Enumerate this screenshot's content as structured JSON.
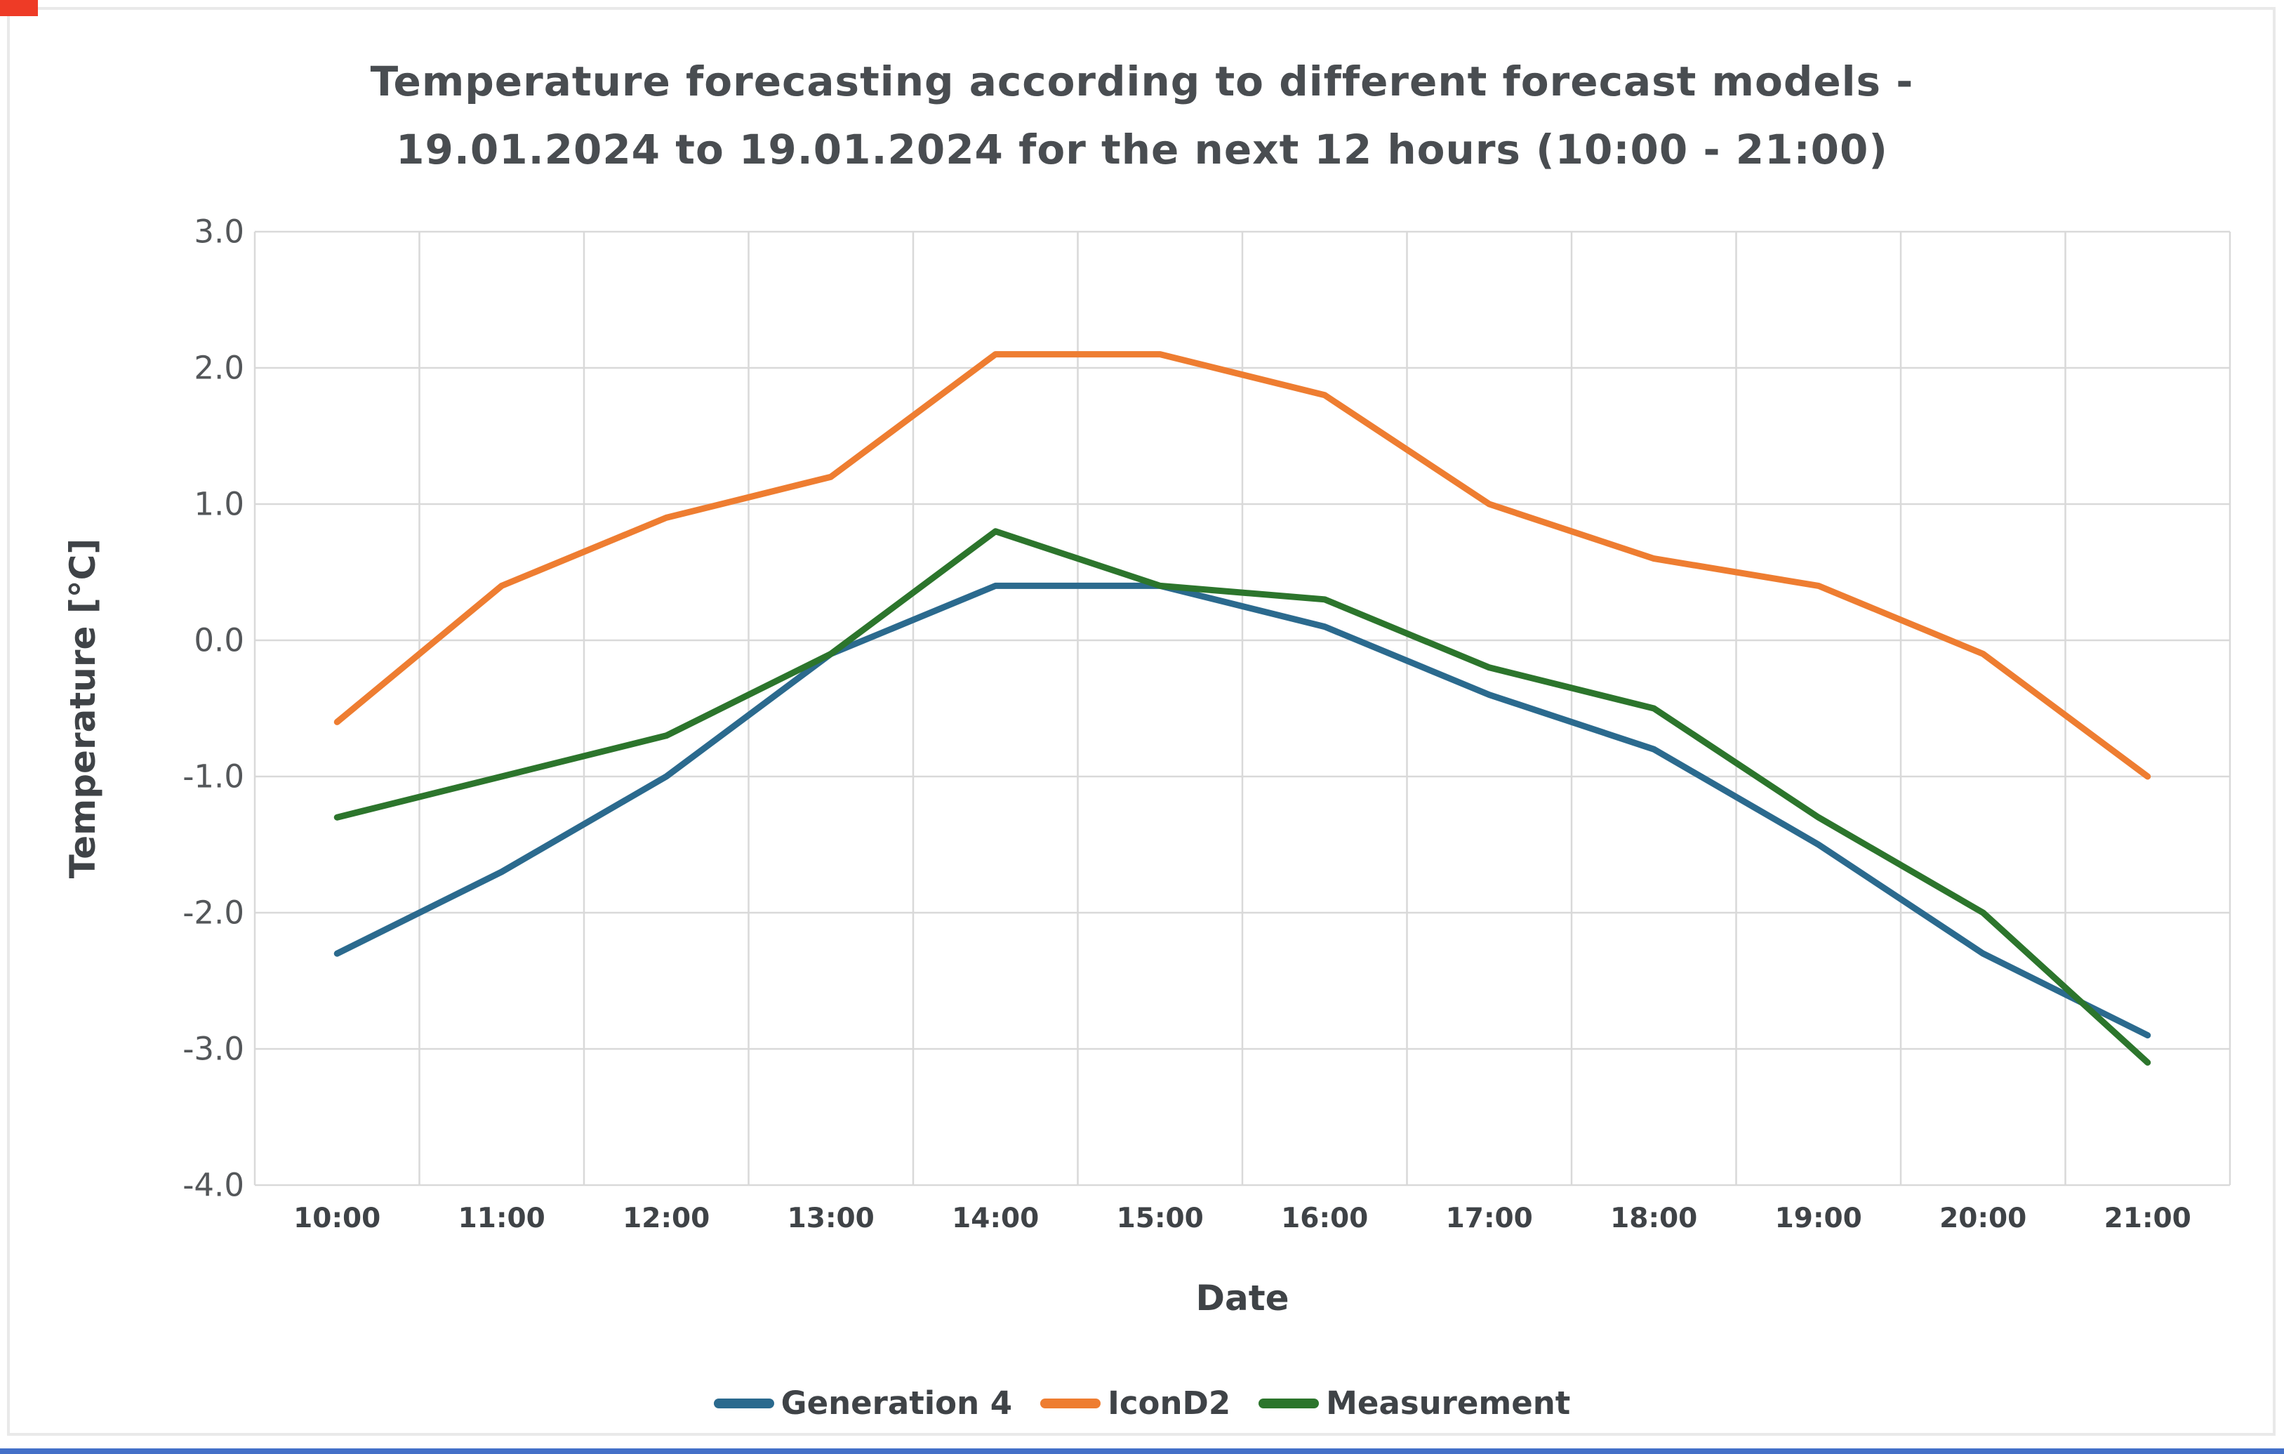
{
  "page": {
    "background_color": "#ffffff",
    "panel_border_color": "#e9e9e9",
    "corner_marker_color": "#ee3b26",
    "bottom_bar_color": "#4470c8"
  },
  "title": {
    "line1": "Temperature forecasting according to different forecast models -",
    "line2": "19.01.2024 to 19.01.2024 for the next 12 hours (10:00 - 21:00)"
  },
  "chart_data": {
    "type": "line",
    "title": "Temperature forecasting according to different forecast models - 19.01.2024 to 19.01.2024 for the next 12 hours (10:00 - 21:00)",
    "xlabel": "Date",
    "ylabel": "Temperature [°C]",
    "ylim": [
      -4.0,
      3.0
    ],
    "y_tick_step": 1.0,
    "y_tick_labels": [
      "3.0",
      "2.0",
      "1.0",
      "0.0",
      "-1.0",
      "-2.0",
      "-3.0",
      "-4.0"
    ],
    "grid": true,
    "grid_color": "#d9d9d9",
    "legend_position": "bottom",
    "categories": [
      "10:00",
      "11:00",
      "12:00",
      "13:00",
      "14:00",
      "15:00",
      "16:00",
      "17:00",
      "18:00",
      "19:00",
      "20:00",
      "21:00"
    ],
    "series": [
      {
        "name": "Generation 4",
        "color": "#2b6a8e",
        "values": [
          -2.3,
          -1.7,
          -1.0,
          -0.1,
          0.4,
          0.4,
          0.1,
          -0.4,
          -0.8,
          -1.5,
          -2.3,
          -2.9
        ]
      },
      {
        "name": "IconD2",
        "color": "#ee7d31",
        "values": [
          -0.6,
          0.4,
          0.9,
          1.2,
          2.1,
          2.1,
          1.8,
          1.0,
          0.6,
          0.4,
          -0.1,
          -1.0
        ]
      },
      {
        "name": "Measurement",
        "color": "#2c752c",
        "values": [
          -1.3,
          -1.0,
          -0.7,
          -0.1,
          0.8,
          0.4,
          0.3,
          -0.2,
          -0.5,
          -1.3,
          -2.0,
          -3.1
        ]
      }
    ]
  }
}
